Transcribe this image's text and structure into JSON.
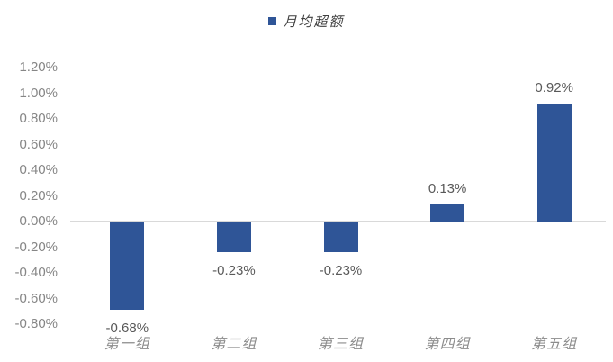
{
  "legend": {
    "label": "月均超额",
    "swatch_color": "#2F5597"
  },
  "chart_data": {
    "type": "bar",
    "title": "月均超额",
    "categories": [
      "第一组",
      "第二组",
      "第三组",
      "第四组",
      "第五组"
    ],
    "series": [
      {
        "name": "月均超额",
        "values": [
          -0.68,
          -0.23,
          -0.23,
          0.13,
          0.92
        ]
      }
    ],
    "values": [
      -0.68,
      -0.23,
      -0.23,
      0.13,
      0.92
    ],
    "value_labels": [
      "-0.68%",
      "-0.23%",
      "-0.23%",
      "0.13%",
      "0.92%"
    ],
    "unit": "%",
    "xlabel": "",
    "ylabel": "",
    "ylim": [
      -0.8,
      1.2
    ],
    "ytick_step": 0.2,
    "ytick_values": [
      1.2,
      1.0,
      0.8,
      0.6,
      0.4,
      0.2,
      0.0,
      -0.2,
      -0.4,
      -0.6,
      -0.8
    ],
    "yticks": [
      "1.20%",
      "1.00%",
      "0.80%",
      "0.60%",
      "0.40%",
      "0.20%",
      "0.00%",
      "-0.20%",
      "-0.40%",
      "-0.60%",
      "-0.80%"
    ],
    "grid": "zero-line-only",
    "legend_position": "top-center",
    "colors": {
      "bar": "#2F5597",
      "zero_line": "#D9D9D9",
      "tick_label": "#868686",
      "data_label": "#595959",
      "category_label": "#8C8C8C",
      "legend_text": "#404040"
    }
  }
}
